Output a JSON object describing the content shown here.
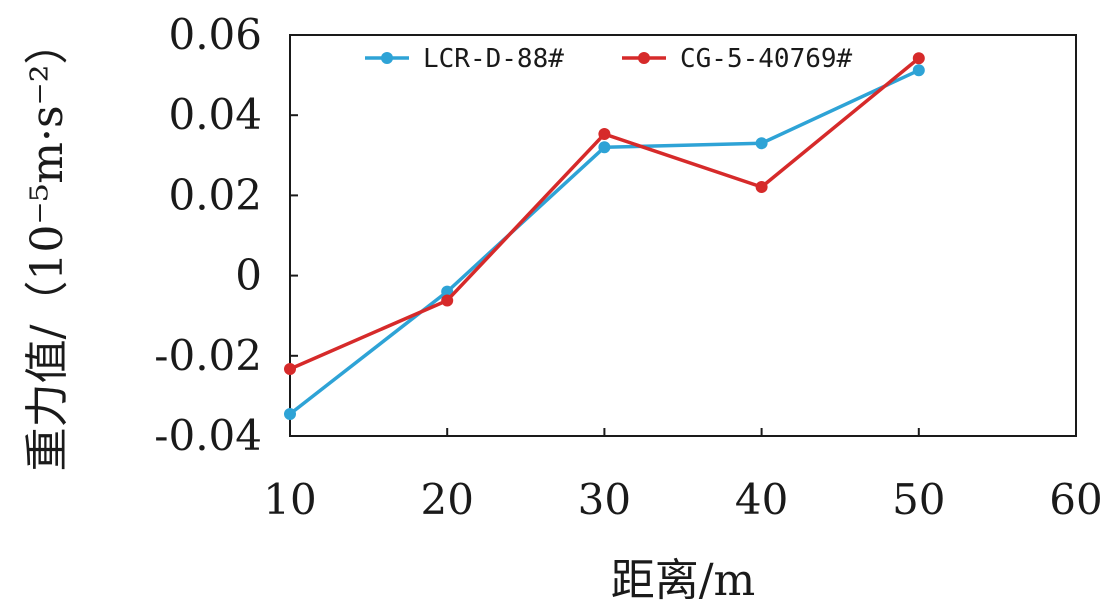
{
  "chart_data": {
    "type": "line",
    "x": [
      10,
      20,
      30,
      40,
      50
    ],
    "series": [
      {
        "name": "LCR-D-88#",
        "color": "#2ea3d6",
        "values": [
          -0.0345,
          -0.004,
          0.032,
          0.033,
          0.0512
        ]
      },
      {
        "name": "CG-5-40769#",
        "color": "#d62a2a",
        "values": [
          -0.0233,
          -0.0062,
          0.0353,
          0.0221,
          0.0542
        ]
      }
    ],
    "xlabel": "距离/m",
    "ylabel": "重力值/（10⁻⁵m·s⁻²）",
    "xlim": [
      10,
      60
    ],
    "ylim": [
      -0.04,
      0.06
    ],
    "x_ticks": [
      "10",
      "20",
      "30",
      "40",
      "50",
      "60"
    ],
    "y_ticks": [
      "-0.04",
      "-0.02",
      "0",
      "0.02",
      "0.04",
      "0.06"
    ],
    "legend_position": "top",
    "grid": false
  }
}
